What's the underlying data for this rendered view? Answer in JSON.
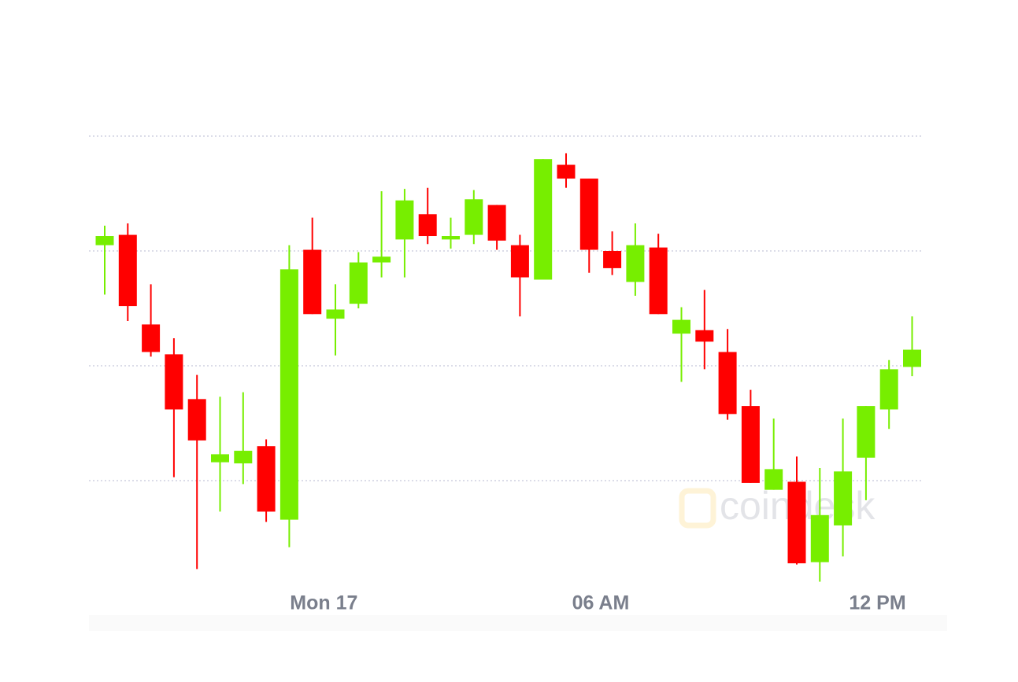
{
  "chart_data": {
    "type": "candlestick",
    "categories": [
      null,
      null,
      null,
      null,
      null,
      null,
      null,
      null,
      null,
      null,
      "Mon 17",
      null,
      null,
      null,
      null,
      null,
      null,
      null,
      null,
      null,
      null,
      null,
      "06 AM",
      null,
      null,
      null,
      null,
      null,
      null,
      null,
      null,
      null,
      null,
      null,
      "12 PM",
      null
    ],
    "open": [
      3.05,
      3.14,
      2.36,
      2.1,
      1.71,
      1.16,
      1.15,
      1.3,
      0.66,
      3.01,
      2.41,
      2.54,
      2.9,
      3.1,
      3.32,
      3.1,
      3.14,
      3.4,
      3.05,
      2.75,
      3.75,
      3.63,
      3.0,
      2.73,
      3.03,
      2.28,
      2.31,
      2.12,
      1.65,
      0.92,
      0.99,
      0.29,
      0.61,
      1.2,
      1.62,
      1.99
    ],
    "high": [
      3.22,
      3.24,
      2.71,
      2.24,
      1.92,
      1.73,
      1.77,
      1.36,
      3.05,
      3.29,
      2.71,
      2.99,
      3.52,
      3.54,
      3.55,
      3.29,
      3.53,
      3.4,
      3.14,
      3.8,
      3.85,
      3.63,
      3.17,
      3.24,
      3.15,
      2.51,
      2.66,
      2.32,
      1.79,
      1.54,
      1.21,
      1.11,
      1.54,
      1.65,
      2.05,
      2.43
    ],
    "low": [
      2.62,
      2.39,
      2.08,
      1.03,
      0.23,
      0.73,
      0.97,
      0.64,
      0.42,
      2.45,
      2.09,
      2.5,
      2.77,
      2.77,
      3.06,
      3.02,
      3.06,
      3.01,
      2.43,
      2.75,
      3.55,
      2.81,
      2.79,
      2.61,
      2.45,
      1.86,
      1.97,
      1.53,
      0.98,
      0.92,
      0.27,
      0.12,
      0.34,
      0.83,
      1.45,
      1.91
    ],
    "close": [
      3.13,
      2.52,
      2.12,
      1.62,
      1.35,
      1.23,
      1.26,
      0.73,
      2.84,
      2.45,
      2.49,
      2.9,
      2.95,
      3.44,
      3.13,
      3.13,
      3.45,
      3.09,
      2.77,
      3.8,
      3.63,
      3.01,
      2.85,
      3.05,
      2.45,
      2.4,
      2.21,
      1.58,
      0.98,
      1.1,
      0.28,
      0.7,
      1.08,
      1.65,
      1.97,
      2.14
    ],
    "up_color": "#77ee00",
    "down_color": "#ff0000",
    "ylim": [
      0,
      5
    ],
    "yticks": [
      1,
      2,
      3,
      4
    ],
    "ytick_labels": false,
    "grid": true,
    "watermark": "coindesk"
  }
}
